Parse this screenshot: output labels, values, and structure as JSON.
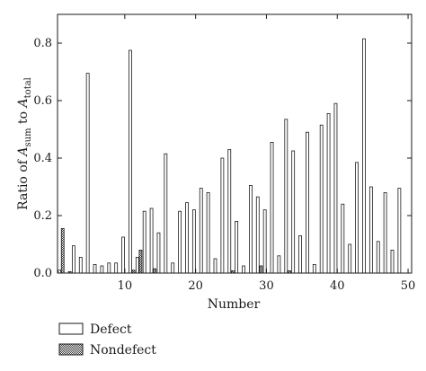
{
  "chart_data": {
    "type": "bar",
    "x": [
      1,
      2,
      3,
      4,
      5,
      6,
      7,
      8,
      9,
      10,
      11,
      12,
      13,
      14,
      15,
      16,
      17,
      18,
      19,
      20,
      21,
      22,
      23,
      24,
      25,
      26,
      27,
      28,
      29,
      30,
      31,
      32,
      33,
      34,
      35,
      36,
      37,
      38,
      39,
      40,
      41,
      42,
      43,
      44,
      45,
      46,
      47,
      48,
      49,
      50
    ],
    "series": [
      {
        "name": "Defect",
        "values": [
          0.01,
          0.0,
          0.095,
          0.055,
          0.695,
          0.03,
          0.025,
          0.035,
          0.035,
          0.125,
          0.775,
          0.055,
          0.215,
          0.225,
          0.14,
          0.415,
          0.035,
          0.215,
          0.245,
          0.22,
          0.295,
          0.28,
          0.05,
          0.4,
          0.43,
          0.18,
          0.025,
          0.305,
          0.265,
          0.22,
          0.455,
          0.06,
          0.535,
          0.425,
          0.13,
          0.49,
          0.03,
          0.515,
          0.555,
          0.59,
          0.24,
          0.1,
          0.385,
          0.815,
          0.3,
          0.11,
          0.28,
          0.08,
          0.295,
          0.0
        ]
      },
      {
        "name": "Nondefect",
        "values": [
          0.155,
          0.005,
          0.0,
          0.0,
          0.0,
          0.0,
          0.0,
          0.0,
          0.0,
          0.0,
          0.01,
          0.08,
          0.0,
          0.015,
          0.0,
          0.0,
          0.0,
          0.0,
          0.0,
          0.0,
          0.0,
          0.0,
          0.0,
          0.0,
          0.008,
          0.0,
          0.0,
          0.0,
          0.025,
          0.0,
          0.0,
          0.0,
          0.008,
          0.0,
          0.0,
          0.0,
          0.0,
          0.0,
          0.0,
          0.0,
          0.0,
          0.0,
          0.0,
          0.0,
          0.0,
          0.0,
          0.0,
          0.0,
          0.0,
          0.0
        ]
      }
    ],
    "xlabel": "Number",
    "ylabel_parts": {
      "prefix": "Ratio of ",
      "a1": "A",
      "s1": "sum",
      "mid": " to ",
      "a2": "A",
      "s2": "total"
    },
    "xlim": [
      0.5,
      50.5
    ],
    "ylim": [
      0,
      0.9
    ],
    "xticks": [
      10,
      20,
      30,
      40,
      50
    ],
    "yticks": [
      0.0,
      0.2,
      0.4,
      0.6,
      0.8
    ],
    "ytick_labels": [
      "0.0",
      "0.2",
      "0.4",
      "0.6",
      "0.8"
    ],
    "grid": false,
    "legend_position": "bottom-left",
    "colors": {
      "defect_fill": "#ffffff",
      "nondefect_fill": "#888888",
      "stroke": "#1a1a1a"
    }
  }
}
